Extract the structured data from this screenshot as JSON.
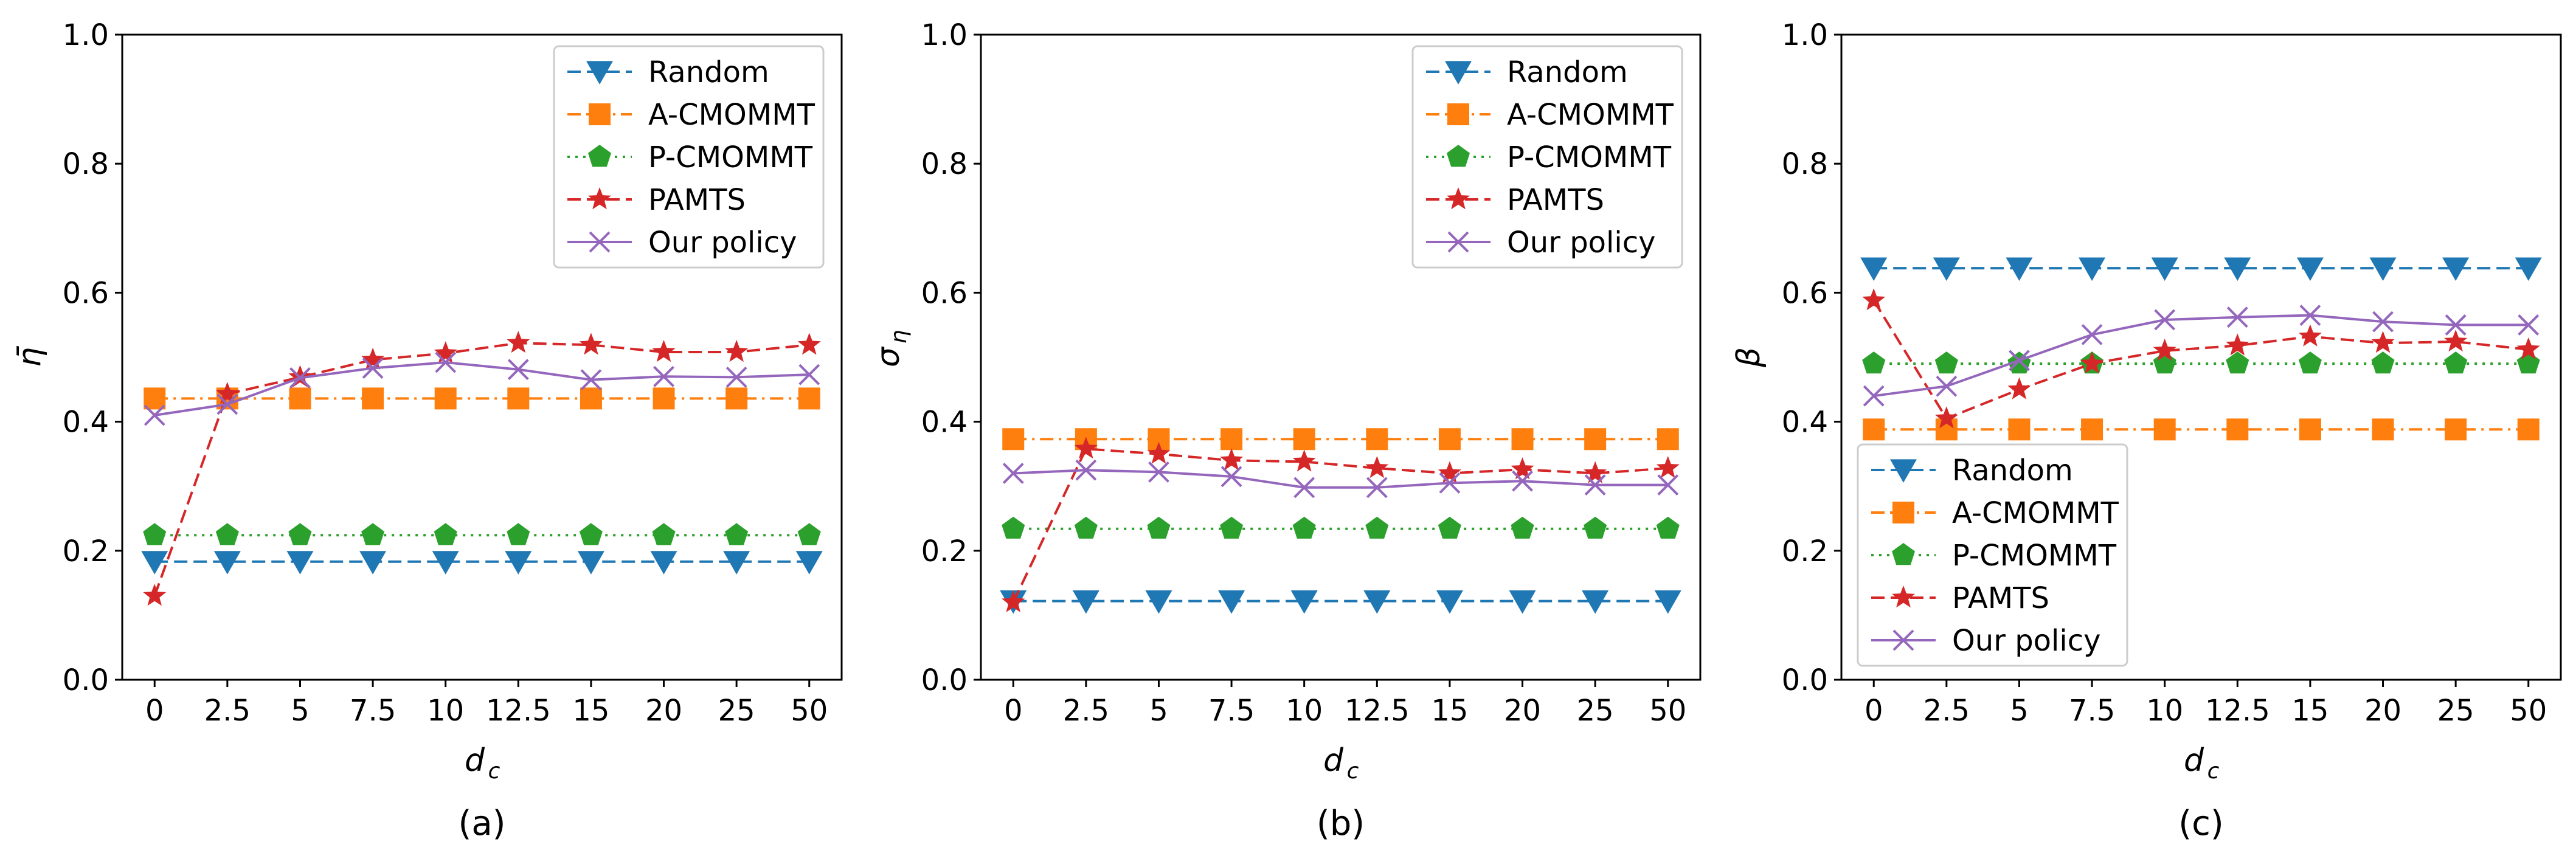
{
  "colors": {
    "Random": "#1f77b4",
    "A-CMOMMT": "#ff7f0e",
    "P-CMOMMT": "#2ca02c",
    "PAMTS": "#d62728",
    "Our policy": "#9467bd"
  },
  "chart_data": [
    {
      "type": "line",
      "caption": "(a)",
      "ylabel": "η̄",
      "xlabel_main": "d",
      "xlabel_sub": "c",
      "ylim": [
        0.0,
        1.0
      ],
      "yticks": [
        "0.0",
        "0.2",
        "0.4",
        "0.6",
        "0.8",
        "1.0"
      ],
      "categories": [
        "0",
        "2.5",
        "5",
        "7.5",
        "10",
        "12.5",
        "15",
        "20",
        "25",
        "50"
      ],
      "legend_position": "top-right",
      "series": [
        {
          "name": "Random",
          "marker": "triangle-down",
          "dash": "dashed",
          "values": [
            0.183,
            0.183,
            0.183,
            0.183,
            0.183,
            0.183,
            0.183,
            0.183,
            0.183,
            0.183
          ]
        },
        {
          "name": "A-CMOMMT",
          "marker": "square",
          "dash": "dashdot",
          "values": [
            0.436,
            0.436,
            0.436,
            0.436,
            0.436,
            0.436,
            0.436,
            0.436,
            0.436,
            0.436
          ]
        },
        {
          "name": "P-CMOMMT",
          "marker": "pentagon",
          "dash": "dotted",
          "values": [
            0.224,
            0.224,
            0.224,
            0.224,
            0.224,
            0.224,
            0.224,
            0.224,
            0.224,
            0.224
          ]
        },
        {
          "name": "PAMTS",
          "marker": "star",
          "dash": "dashed",
          "values": [
            0.13,
            0.443,
            0.469,
            0.496,
            0.506,
            0.522,
            0.519,
            0.508,
            0.508,
            0.519
          ]
        },
        {
          "name": "Our policy",
          "marker": "x",
          "dash": "solid",
          "values": [
            0.41,
            0.427,
            0.468,
            0.483,
            0.492,
            0.481,
            0.465,
            0.47,
            0.469,
            0.473
          ]
        }
      ]
    },
    {
      "type": "line",
      "caption": "(b)",
      "ylabel": "σ",
      "ylabel_sub": "η",
      "xlabel_main": "d",
      "xlabel_sub": "c",
      "ylim": [
        0.0,
        1.0
      ],
      "yticks": [
        "0.0",
        "0.2",
        "0.4",
        "0.6",
        "0.8",
        "1.0"
      ],
      "categories": [
        "0",
        "2.5",
        "5",
        "7.5",
        "10",
        "12.5",
        "15",
        "20",
        "25",
        "50"
      ],
      "legend_position": "top-right",
      "series": [
        {
          "name": "Random",
          "marker": "triangle-down",
          "dash": "dashed",
          "values": [
            0.122,
            0.122,
            0.122,
            0.122,
            0.122,
            0.122,
            0.122,
            0.122,
            0.122,
            0.122
          ]
        },
        {
          "name": "A-CMOMMT",
          "marker": "square",
          "dash": "dashdot",
          "values": [
            0.373,
            0.373,
            0.373,
            0.373,
            0.373,
            0.373,
            0.373,
            0.373,
            0.373,
            0.373
          ]
        },
        {
          "name": "P-CMOMMT",
          "marker": "pentagon",
          "dash": "dotted",
          "values": [
            0.234,
            0.234,
            0.234,
            0.234,
            0.234,
            0.234,
            0.234,
            0.234,
            0.234,
            0.234
          ]
        },
        {
          "name": "PAMTS",
          "marker": "star",
          "dash": "dashed",
          "values": [
            0.12,
            0.358,
            0.35,
            0.34,
            0.338,
            0.328,
            0.32,
            0.326,
            0.32,
            0.328
          ]
        },
        {
          "name": "Our policy",
          "marker": "x",
          "dash": "solid",
          "values": [
            0.32,
            0.325,
            0.322,
            0.315,
            0.298,
            0.298,
            0.305,
            0.308,
            0.302,
            0.302
          ]
        }
      ]
    },
    {
      "type": "line",
      "caption": "(c)",
      "ylabel": "β",
      "xlabel_main": "d",
      "xlabel_sub": "c",
      "ylim": [
        0.0,
        1.0
      ],
      "yticks": [
        "0.0",
        "0.2",
        "0.4",
        "0.6",
        "0.8",
        "1.0"
      ],
      "categories": [
        "0",
        "2.5",
        "5",
        "7.5",
        "10",
        "12.5",
        "15",
        "20",
        "25",
        "50"
      ],
      "legend_position": "bottom-left",
      "series": [
        {
          "name": "Random",
          "marker": "triangle-down",
          "dash": "dashed",
          "values": [
            0.638,
            0.638,
            0.638,
            0.638,
            0.638,
            0.638,
            0.638,
            0.638,
            0.638,
            0.638
          ]
        },
        {
          "name": "A-CMOMMT",
          "marker": "square",
          "dash": "dashdot",
          "values": [
            0.388,
            0.388,
            0.388,
            0.388,
            0.388,
            0.388,
            0.388,
            0.388,
            0.388,
            0.388
          ]
        },
        {
          "name": "P-CMOMMT",
          "marker": "pentagon",
          "dash": "dotted",
          "values": [
            0.49,
            0.49,
            0.49,
            0.49,
            0.49,
            0.49,
            0.49,
            0.49,
            0.49,
            0.49
          ]
        },
        {
          "name": "PAMTS",
          "marker": "star",
          "dash": "dashed",
          "values": [
            0.588,
            0.405,
            0.45,
            0.49,
            0.51,
            0.518,
            0.532,
            0.522,
            0.524,
            0.512
          ]
        },
        {
          "name": "Our policy",
          "marker": "x",
          "dash": "solid",
          "values": [
            0.44,
            0.455,
            0.495,
            0.535,
            0.558,
            0.562,
            0.565,
            0.555,
            0.55,
            0.55
          ]
        }
      ]
    }
  ]
}
